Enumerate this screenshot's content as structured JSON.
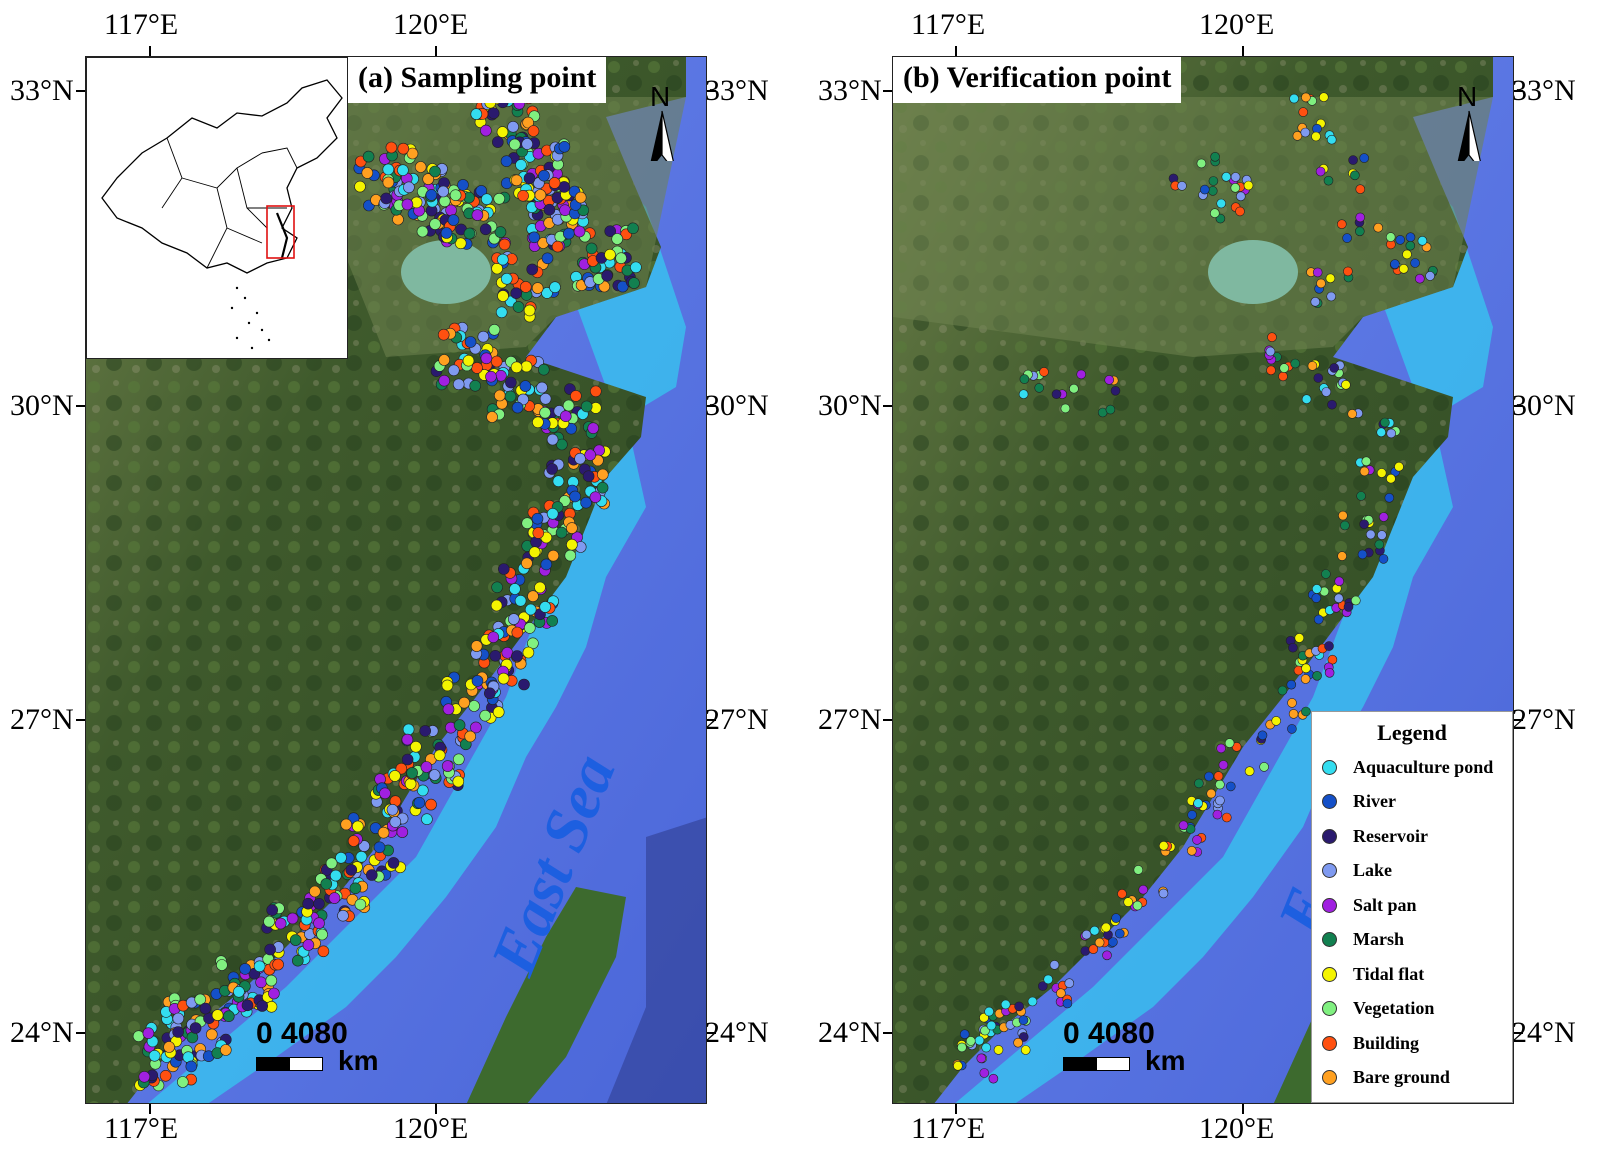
{
  "panels": [
    {
      "title": "(a) Sampling point",
      "north_label": "N",
      "scale_label": "0 4080",
      "scale_unit": "km",
      "sea_label": "East Sea"
    },
    {
      "title": "(b) Verification point",
      "north_label": "N",
      "scale_label": "0 4080",
      "scale_unit": "km",
      "sea_label": "E"
    }
  ],
  "axes": {
    "lon_ticks": [
      "117°E",
      "120°E"
    ],
    "lat_ticks": [
      "33°N",
      "30°N",
      "27°N",
      "24°N"
    ]
  },
  "legend": {
    "title": "Legend",
    "items": [
      {
        "label": "Aquaculture pond",
        "color": "#33ddf0"
      },
      {
        "label": "River",
        "color": "#1450c8"
      },
      {
        "label": "Reservoir",
        "color": "#2a1a6e"
      },
      {
        "label": "Lake",
        "color": "#7f9af0"
      },
      {
        "label": "Salt pan",
        "color": "#a020e0"
      },
      {
        "label": "Marsh",
        "color": "#128050"
      },
      {
        "label": "Tidal flat",
        "color": "#f4f400"
      },
      {
        "label": "Vegetation",
        "color": "#80f080"
      },
      {
        "label": "Building",
        "color": "#ff5010"
      },
      {
        "label": "Bare ground",
        "color": "#ffa020"
      }
    ]
  },
  "colors": {
    "sea": "#5a78e8",
    "land": "#3a5a2a",
    "coast_water": "#36c8f0"
  }
}
